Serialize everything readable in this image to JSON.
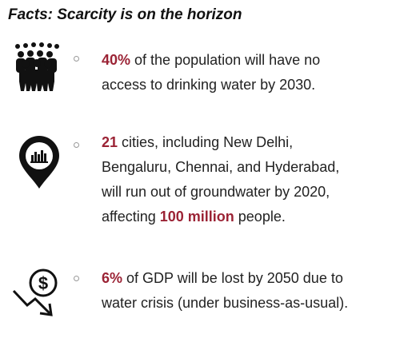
{
  "title": "Facts: Scarcity is on the horizon",
  "facts": [
    {
      "lines": [
        [
          {
            "text": "40%",
            "emphasis": true
          },
          {
            "text": " of the population will have no"
          }
        ],
        [
          {
            "text": "access to drinking water by 2030."
          }
        ]
      ]
    },
    {
      "lines": [
        [
          {
            "text": "21",
            "emphasis": true
          },
          {
            "text": " cities, including New Delhi,"
          }
        ],
        [
          {
            "text": "Bengaluru, Chennai, and Hyderabad,"
          }
        ],
        [
          {
            "text": "will run out of groundwater by 2020,"
          }
        ],
        [
          {
            "text": "affecting "
          },
          {
            "text": "100 million",
            "emphasis": true
          },
          {
            "text": " people."
          }
        ]
      ]
    },
    {
      "lines": [
        [
          {
            "text": "6%",
            "emphasis": true
          },
          {
            "text": " of GDP will be lost by 2050 due to"
          }
        ],
        [
          {
            "text": "water crisis (under business-as-usual)."
          }
        ]
      ]
    }
  ]
}
